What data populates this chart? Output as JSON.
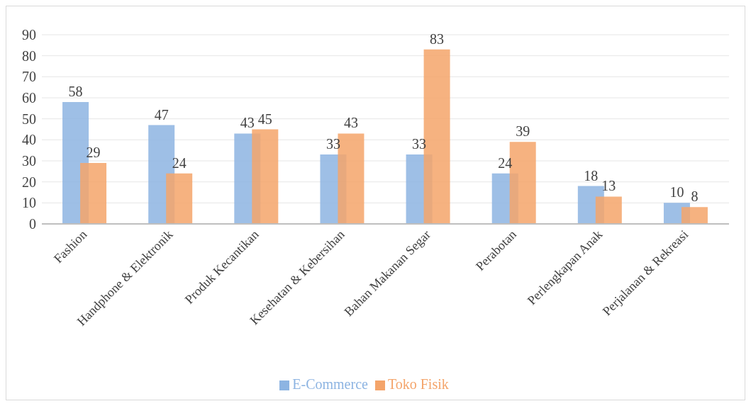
{
  "chart_data": {
    "type": "bar",
    "categories": [
      "Fashion",
      "Handphone & Elektronik",
      "Produk Kecantikan",
      "Kesehatan & Kebersihan",
      "Bahan Makanan Segar",
      "Perabotan",
      "Perlengkapan Anak",
      "Perjalanan & Rekreasi"
    ],
    "series": [
      {
        "name": "E-Commerce",
        "color": "#8db4e2",
        "values": [
          58,
          47,
          43,
          33,
          33,
          24,
          18,
          10
        ]
      },
      {
        "name": "Toko Fisik",
        "color": "#f4a46a",
        "values": [
          29,
          24,
          45,
          43,
          83,
          39,
          13,
          8
        ]
      }
    ],
    "ylim": [
      0,
      90
    ],
    "yticks": [
      0,
      10,
      20,
      30,
      40,
      50,
      60,
      70,
      80,
      90
    ],
    "grid": "y",
    "legend": "bottom",
    "data_labels": true
  }
}
